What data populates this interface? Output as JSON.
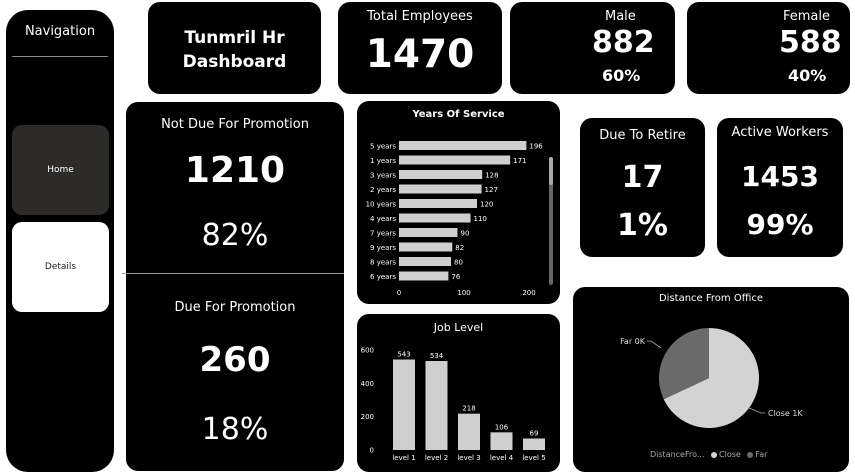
{
  "nav": {
    "title": "Navigation",
    "items": [
      {
        "label": "Home"
      },
      {
        "label": "Details"
      }
    ]
  },
  "header": {
    "title_line1": "Tunmril Hr",
    "title_line2": "Dashboard"
  },
  "kpi": {
    "total": {
      "label": "Total Employees",
      "value": "1470"
    },
    "male": {
      "label": "Male",
      "value": "882",
      "pct": "60%"
    },
    "female": {
      "label": "Female",
      "value": "588",
      "pct": "40%"
    },
    "not_due": {
      "label": "Not Due For Promotion",
      "value": "1210",
      "pct": "82%"
    },
    "due": {
      "label": "Due For Promotion",
      "value": "260",
      "pct": "18%"
    },
    "retire": {
      "label": "Due To Retire",
      "value": "17",
      "pct": "1%"
    },
    "active": {
      "label": "Active Workers",
      "value": "1453",
      "pct": "99%"
    }
  },
  "chart_data": [
    {
      "type": "bar",
      "orientation": "horizontal",
      "title": "Years Of Service",
      "categories": [
        "5 years",
        "1 years",
        "3 years",
        "2 years",
        "10 years",
        "4 years",
        "7 years",
        "9 years",
        "8 years",
        "6 years"
      ],
      "values": [
        196,
        171,
        128,
        127,
        120,
        110,
        90,
        82,
        80,
        76
      ],
      "xlim": [
        0,
        200
      ],
      "xticks": [
        "0",
        "100",
        "200"
      ],
      "color": "#cfcfcf"
    },
    {
      "type": "bar",
      "title": "Job Level",
      "categories": [
        "level 1",
        "level 2",
        "level 3",
        "level 4",
        "level 5"
      ],
      "values": [
        543,
        534,
        218,
        106,
        69
      ],
      "ylim": [
        0,
        600
      ],
      "yticks": [
        "0",
        "200",
        "400",
        "600"
      ],
      "color": "#cfcfcf"
    },
    {
      "type": "pie",
      "title": "Distance From Office",
      "slices": [
        {
          "label": "Close",
          "value": 1000,
          "display": "Close 1K",
          "color": "#d3d3d3"
        },
        {
          "label": "Far",
          "value": 470,
          "display": "Far 0K",
          "color": "#6a6a6a"
        }
      ],
      "legend_title": "DistanceFro...",
      "legend": [
        "Close",
        "Far"
      ]
    }
  ]
}
